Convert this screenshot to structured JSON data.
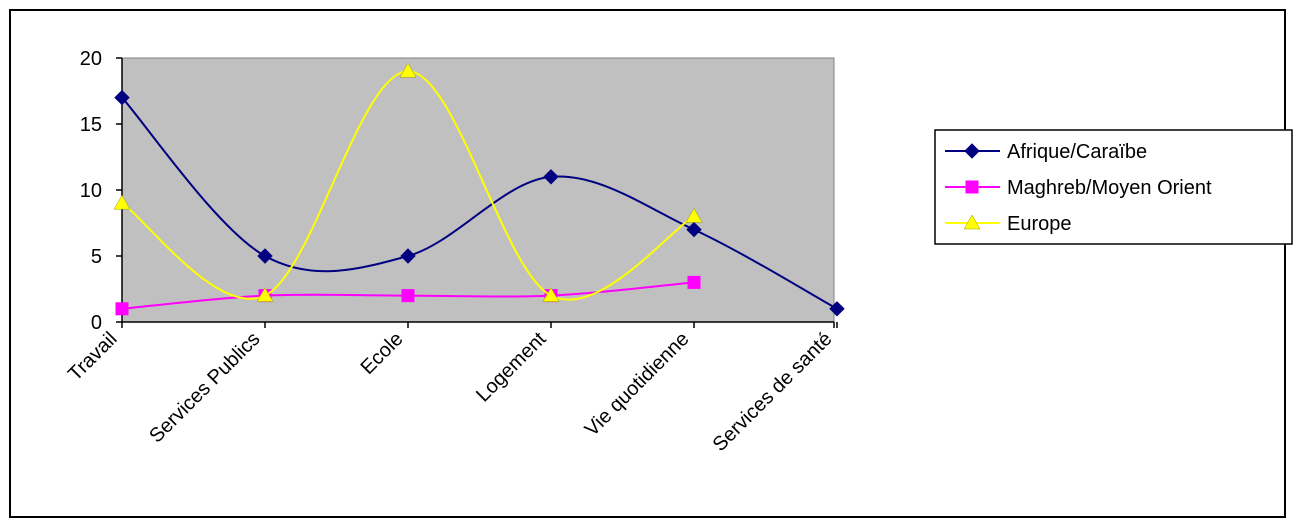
{
  "chart_data": {
    "type": "line",
    "title": "",
    "xlabel": "",
    "ylabel": "",
    "categories": [
      "Travail",
      "Services Publics",
      "Ecole",
      "Logement",
      "Vie quotidienne",
      "Services de santé"
    ],
    "ylim": [
      0,
      20
    ],
    "yticks": [
      0,
      5,
      10,
      15,
      20
    ],
    "grid": false,
    "smoothed": true,
    "plot_background": "#C0C0C0",
    "legend_position": "right",
    "series": [
      {
        "name": "Afrique/Caraïbe",
        "color": "#000080",
        "marker": "diamond",
        "values": [
          17,
          5,
          5,
          11,
          7,
          1
        ]
      },
      {
        "name": "Maghreb/Moyen Orient",
        "color": "#FF00FF",
        "marker": "square",
        "values": [
          1,
          2,
          2,
          2,
          3,
          null
        ]
      },
      {
        "name": "Europe",
        "color": "#FFFF00",
        "marker": "triangle",
        "values": [
          9,
          2,
          19,
          2,
          8,
          null
        ]
      }
    ]
  }
}
